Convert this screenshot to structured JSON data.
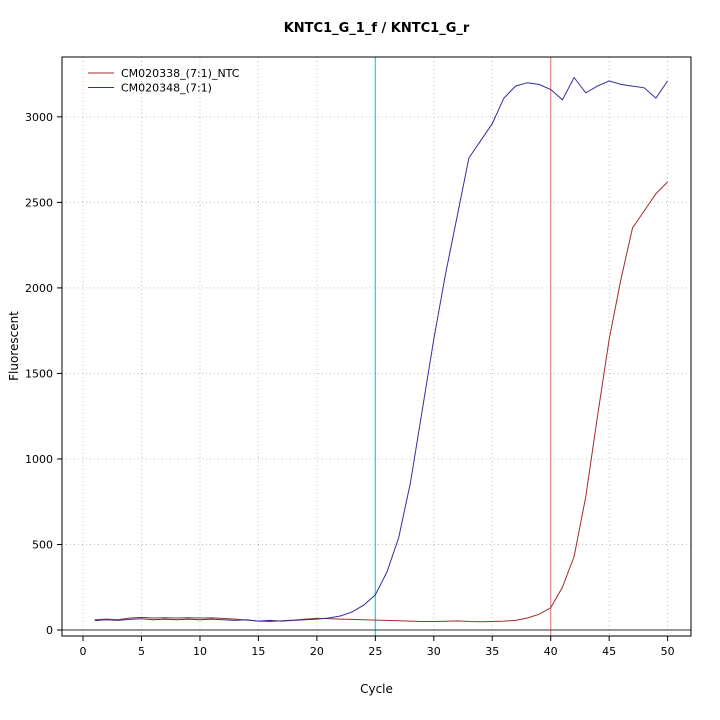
{
  "chart_data": {
    "type": "line",
    "title": "KNTC1_G_1_f / KNTC1_G_r",
    "xlabel": "Cycle",
    "ylabel": "Fluorescent",
    "xlim": [
      -1.8,
      52
    ],
    "ylim": [
      -35,
      3350
    ],
    "x_ticks": [
      0,
      5,
      10,
      15,
      20,
      25,
      30,
      35,
      40,
      45,
      50
    ],
    "y_ticks": [
      0,
      500,
      1000,
      1500,
      2000,
      2500,
      3000
    ],
    "grid": "dotted",
    "legend_position": "top-left",
    "colors": {
      "grid": "#bdbdbd",
      "box": "#000000",
      "tick_text": "#000000",
      "baseline": "#303030"
    },
    "x": [
      1,
      2,
      3,
      4,
      5,
      6,
      7,
      8,
      9,
      10,
      11,
      12,
      13,
      14,
      15,
      16,
      17,
      18,
      19,
      20,
      21,
      22,
      23,
      24,
      25,
      26,
      27,
      28,
      29,
      30,
      31,
      32,
      33,
      34,
      35,
      36,
      37,
      38,
      39,
      40,
      41,
      42,
      43,
      44,
      45,
      46,
      47,
      48,
      49,
      50
    ],
    "series": [
      {
        "name": "CM020338_(7:1)_NTC",
        "color": "#a02c2c",
        "values": [
          60,
          64,
          60,
          70,
          74,
          70,
          72,
          70,
          72,
          70,
          71,
          68,
          64,
          58,
          52,
          50,
          54,
          58,
          64,
          68,
          67,
          64,
          62,
          60,
          58,
          56,
          54,
          52,
          50,
          50,
          51,
          53,
          50,
          48,
          50,
          52,
          56,
          70,
          92,
          130,
          250,
          430,
          780,
          1250,
          1700,
          2050,
          2350,
          2450,
          2550,
          2620
        ]
      },
      {
        "name": "CM020348_(7:1)",
        "color": "#30309c",
        "values": [
          55,
          60,
          56,
          62,
          66,
          60,
          64,
          60,
          64,
          60,
          64,
          60,
          56,
          60,
          52,
          56,
          52,
          56,
          60,
          64,
          70,
          82,
          105,
          145,
          205,
          340,
          540,
          860,
          1280,
          1700,
          2080,
          2420,
          2760,
          2860,
          2960,
          3110,
          3180,
          3200,
          3190,
          3160,
          3100,
          3230,
          3140,
          3180,
          3210,
          3190,
          3180,
          3170,
          3110,
          3210
        ]
      }
    ],
    "vlines": [
      {
        "x": 25,
        "color": "#00e5e5"
      },
      {
        "x": 40,
        "color": "#e08888"
      }
    ],
    "hlines": [
      {
        "y": 0,
        "color": "#303030"
      }
    ]
  }
}
